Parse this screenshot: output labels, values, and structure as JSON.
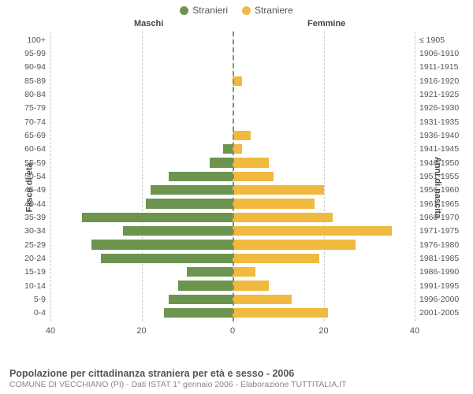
{
  "legend": {
    "male": {
      "label": "Stranieri",
      "color": "#6d944e"
    },
    "female": {
      "label": "Straniere",
      "color": "#f0b93f"
    }
  },
  "headers": {
    "left": "Maschi",
    "right": "Femmine"
  },
  "axis_titles": {
    "left": "Fasce di età",
    "right": "Anni di nascita"
  },
  "x_axis": {
    "max": 40,
    "ticks_left": [
      40,
      20,
      0
    ],
    "ticks_right": [
      0,
      20,
      40
    ],
    "grid_positions_pct": [
      0,
      25,
      50,
      75,
      100
    ],
    "grid_labels": [
      "40",
      "20",
      "0",
      "20",
      "40"
    ],
    "grid_color": "#cccccc",
    "center_color": "#888888"
  },
  "rows": [
    {
      "age": "100+",
      "year": "≤ 1905",
      "m": 0,
      "f": 0
    },
    {
      "age": "95-99",
      "year": "1906-1910",
      "m": 0,
      "f": 0
    },
    {
      "age": "90-94",
      "year": "1911-1915",
      "m": 0,
      "f": 0
    },
    {
      "age": "85-89",
      "year": "1916-1920",
      "m": 0,
      "f": 2
    },
    {
      "age": "80-84",
      "year": "1921-1925",
      "m": 0,
      "f": 0
    },
    {
      "age": "75-79",
      "year": "1926-1930",
      "m": 0,
      "f": 0
    },
    {
      "age": "70-74",
      "year": "1931-1935",
      "m": 0,
      "f": 0
    },
    {
      "age": "65-69",
      "year": "1936-1940",
      "m": 0,
      "f": 4
    },
    {
      "age": "60-64",
      "year": "1941-1945",
      "m": 2,
      "f": 2
    },
    {
      "age": "55-59",
      "year": "1946-1950",
      "m": 5,
      "f": 8
    },
    {
      "age": "50-54",
      "year": "1951-1955",
      "m": 14,
      "f": 9
    },
    {
      "age": "45-49",
      "year": "1956-1960",
      "m": 18,
      "f": 20
    },
    {
      "age": "40-44",
      "year": "1961-1965",
      "m": 19,
      "f": 18
    },
    {
      "age": "35-39",
      "year": "1966-1970",
      "m": 33,
      "f": 22
    },
    {
      "age": "30-34",
      "year": "1971-1975",
      "m": 24,
      "f": 35
    },
    {
      "age": "25-29",
      "year": "1976-1980",
      "m": 31,
      "f": 27
    },
    {
      "age": "20-24",
      "year": "1981-1985",
      "m": 29,
      "f": 19
    },
    {
      "age": "15-19",
      "year": "1986-1990",
      "m": 10,
      "f": 5
    },
    {
      "age": "10-14",
      "year": "1991-1995",
      "m": 12,
      "f": 8
    },
    {
      "age": "5-9",
      "year": "1996-2000",
      "m": 14,
      "f": 13
    },
    {
      "age": "0-4",
      "year": "2001-2005",
      "m": 15,
      "f": 21
    }
  ],
  "bar_style": {
    "male_color": "#6d944e",
    "female_color": "#f0b93f"
  },
  "footer": {
    "title": "Popolazione per cittadinanza straniera per età e sesso - 2006",
    "subtitle": "COMUNE DI VECCHIANO (PI) - Dati ISTAT 1° gennaio 2006 - Elaborazione TUTTITALIA.IT"
  },
  "fonts": {
    "tick": 11,
    "label": 10.5,
    "title": 12.5,
    "subtitle": 10.5
  }
}
